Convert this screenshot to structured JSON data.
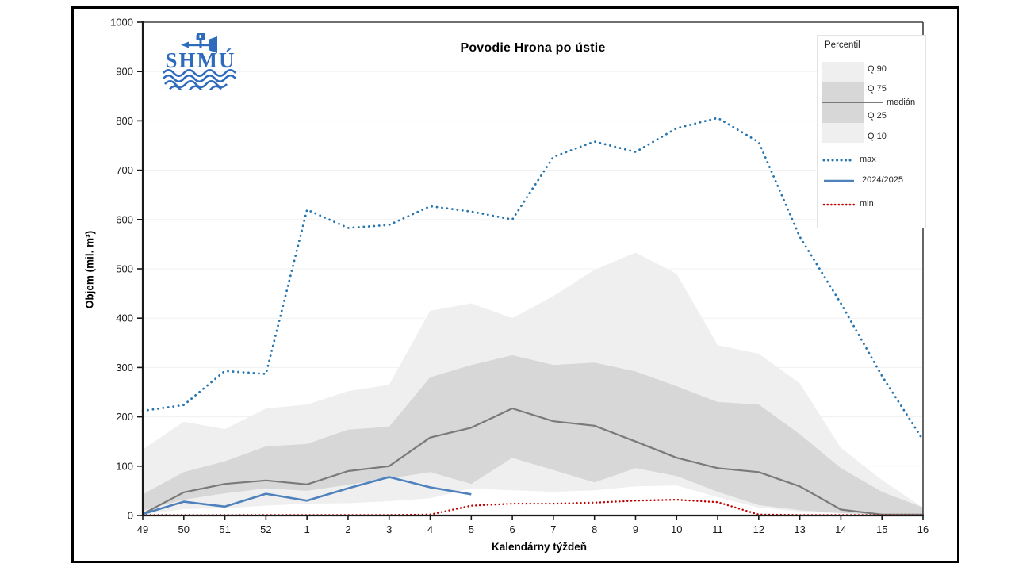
{
  "title": "Povodie Hrona po ústie",
  "logo_text": "SHMÚ",
  "legend": {
    "title": "Percentil",
    "band_labels": {
      "q90": "Q 90",
      "q75": "Q 75",
      "median": "medián",
      "q25": "Q 25",
      "q10": "Q 10"
    },
    "series_labels": {
      "max": "max",
      "current": "2024/2025",
      "min": "min"
    }
  },
  "chart_data": {
    "type": "area",
    "title": "Povodie Hrona po ústie",
    "xlabel": "Kalendárny týždeň",
    "ylabel": "Objem (mil. m³)",
    "ylim": [
      0,
      1000
    ],
    "y_ticks": [
      0,
      100,
      200,
      300,
      400,
      500,
      600,
      700,
      800,
      900,
      1000
    ],
    "categories": [
      "49",
      "50",
      "51",
      "52",
      "1",
      "2",
      "3",
      "4",
      "5",
      "6",
      "7",
      "8",
      "9",
      "10",
      "11",
      "12",
      "13",
      "14",
      "15",
      "16"
    ],
    "grid": "horizontal-faint",
    "legend_position": "right",
    "band_colors": {
      "outer": "#efefef",
      "inner": "#d7d7d7"
    },
    "bands": {
      "q90": [
        134,
        190,
        175,
        217,
        225,
        252,
        265,
        415,
        430,
        400,
        445,
        498,
        533,
        490,
        345,
        328,
        268,
        137,
        72,
        16
      ],
      "q75": [
        43,
        88,
        110,
        140,
        145,
        174,
        180,
        280,
        305,
        325,
        305,
        310,
        292,
        262,
        230,
        225,
        165,
        96,
        48,
        16
      ],
      "q25": [
        10,
        32,
        45,
        55,
        50,
        62,
        75,
        88,
        64,
        117,
        92,
        67,
        96,
        80,
        48,
        21,
        11,
        5,
        2,
        1
      ],
      "q10": [
        2,
        13,
        15,
        20,
        24,
        25,
        29,
        35,
        55,
        51,
        48,
        51,
        59,
        61,
        37,
        16,
        8,
        4,
        2,
        1
      ]
    },
    "series": [
      {
        "name": "max",
        "style": "dotted",
        "color": "#2474b0",
        "values": [
          212,
          224,
          293,
          287,
          620,
          583,
          589,
          627,
          616,
          600,
          727,
          758,
          737,
          785,
          806,
          757,
          565,
          430,
          283,
          153
        ]
      },
      {
        "name": "2024/2025",
        "style": "solid",
        "color": "#4f81bd",
        "values": [
          3,
          28,
          18,
          44,
          30,
          55,
          78,
          57,
          43
        ]
      },
      {
        "name": "min",
        "style": "dotted",
        "color": "#c00000",
        "values": [
          1,
          1,
          1,
          1,
          1,
          1,
          1,
          2,
          20,
          24,
          24,
          26,
          30,
          32,
          27,
          2,
          1,
          1,
          1,
          1
        ]
      },
      {
        "name": "medián",
        "style": "solid",
        "color": "#7a7a7a",
        "values": [
          3,
          47,
          64,
          71,
          63,
          90,
          100,
          158,
          178,
          217,
          191,
          182,
          150,
          117,
          96,
          88,
          59,
          12,
          2,
          2
        ]
      }
    ]
  },
  "colors": {
    "axis": "#1a1a1a",
    "gridline": "#f0f0f0",
    "logo_blue": "#2f6bbb",
    "tick_label": "#1a1a1a"
  }
}
